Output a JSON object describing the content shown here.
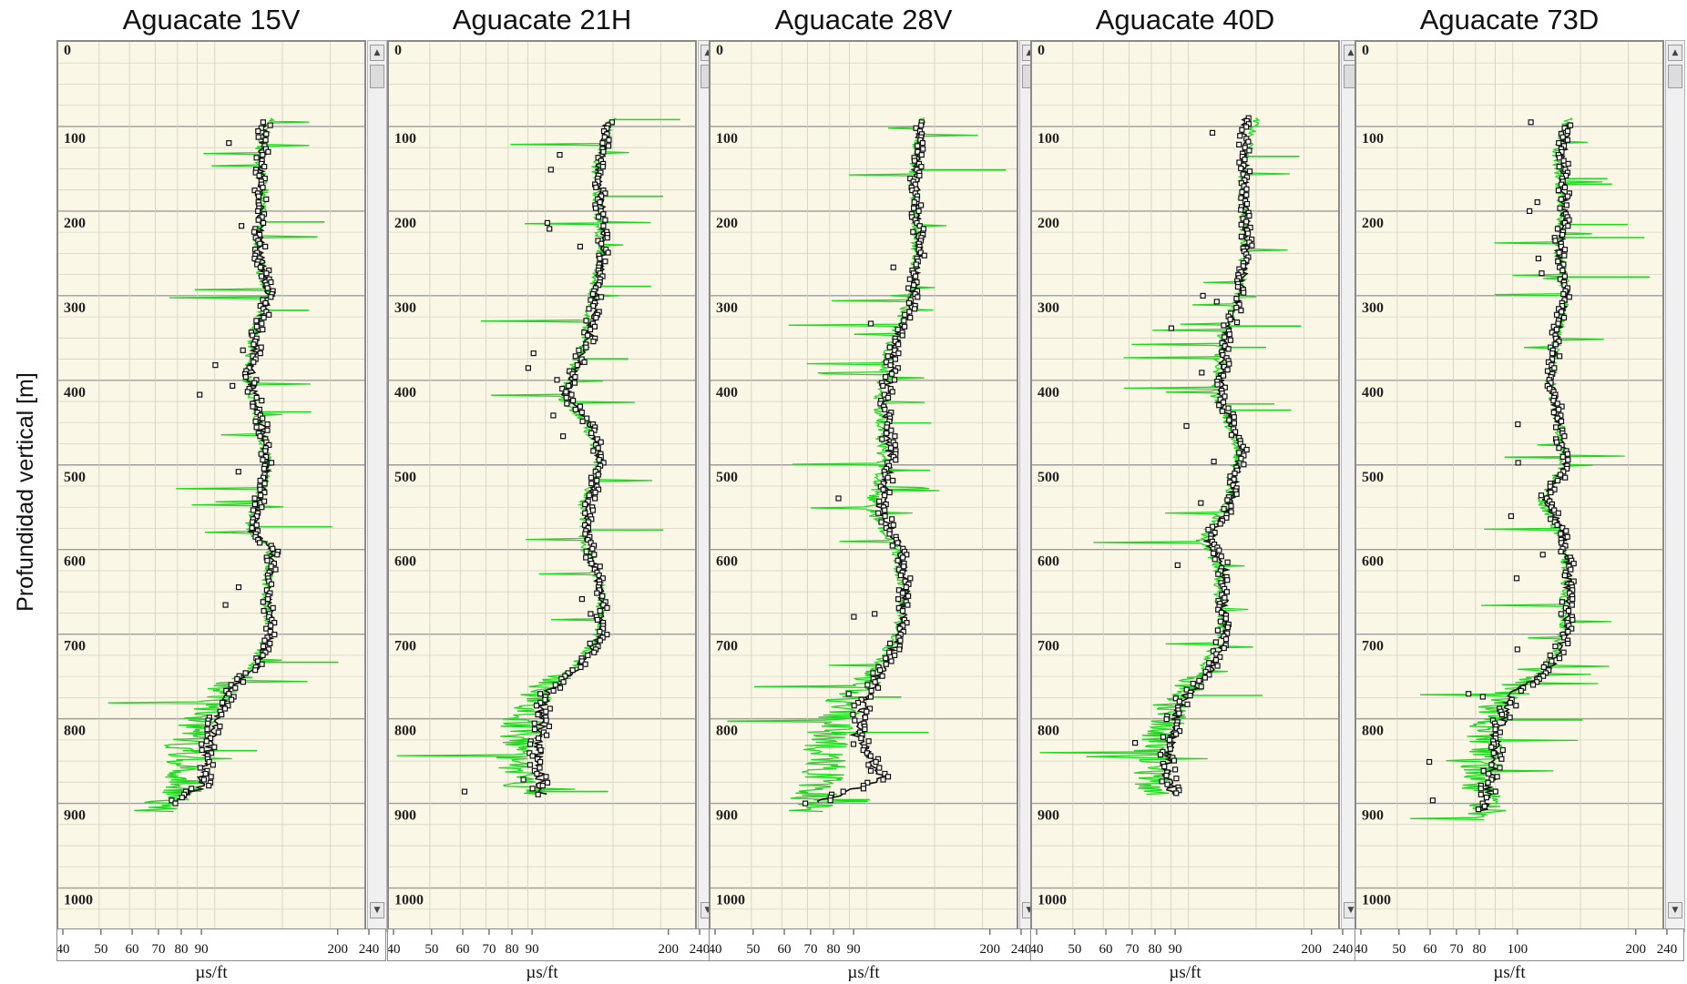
{
  "figure": {
    "ylabel": "Profundidad vertical  [m]"
  },
  "chart_data": [
    {
      "type": "line",
      "title": "Aguacate 15V",
      "xlabel": "µs/ft",
      "ylabel": "Profundidad vertical  [m]",
      "x_scale": "log",
      "x_ticks": [
        40,
        50,
        60,
        70,
        80,
        90,
        200,
        240
      ],
      "y_ticks": [
        0,
        100,
        200,
        300,
        400,
        500,
        600,
        700,
        800,
        900,
        1000
      ],
      "ylim": [
        0,
        1050
      ],
      "xlim": [
        40,
        240
      ],
      "grid": true,
      "series": [
        {
          "color": "#1fd81f",
          "profile": [
            [
              90,
              140
            ],
            [
              130,
              130
            ],
            [
              170,
              135
            ],
            [
              250,
              128
            ],
            [
              300,
              138
            ],
            [
              350,
              125
            ],
            [
              400,
              122
            ],
            [
              450,
              130
            ],
            [
              500,
              138
            ],
            [
              550,
              128
            ],
            [
              580,
              122
            ],
            [
              600,
              140
            ],
            [
              650,
              136
            ],
            [
              700,
              138
            ],
            [
              740,
              125
            ],
            [
              760,
              108
            ],
            [
              800,
              92
            ],
            [
              840,
              82
            ],
            [
              880,
              85
            ],
            [
              910,
              70
            ]
          ]
        },
        {
          "color": "#111111",
          "profile": [
            [
              95,
              135
            ],
            [
              130,
              133
            ],
            [
              170,
              132
            ],
            [
              250,
              131
            ],
            [
              300,
              138
            ],
            [
              350,
              128
            ],
            [
              400,
              124
            ],
            [
              450,
              132
            ],
            [
              500,
              138
            ],
            [
              550,
              130
            ],
            [
              580,
              125
            ],
            [
              600,
              142
            ],
            [
              650,
              138
            ],
            [
              700,
              140
            ],
            [
              740,
              128
            ],
            [
              760,
              112
            ],
            [
              800,
              100
            ],
            [
              840,
              96
            ],
            [
              880,
              92
            ],
            [
              900,
              80
            ]
          ]
        }
      ]
    },
    {
      "type": "line",
      "title": "Aguacate 21H",
      "xlabel": "µs/ft",
      "ylabel": "",
      "x_scale": "log",
      "x_ticks": [
        40,
        50,
        60,
        70,
        80,
        90,
        200,
        240
      ],
      "y_ticks": [
        0,
        100,
        200,
        300,
        400,
        500,
        600,
        700,
        800,
        900,
        1000
      ],
      "ylim": [
        0,
        1050
      ],
      "xlim": [
        40,
        240
      ],
      "grid": true,
      "series": [
        {
          "color": "#1fd81f",
          "profile": [
            [
              90,
              150
            ],
            [
              150,
              135
            ],
            [
              250,
              140
            ],
            [
              300,
              132
            ],
            [
              350,
              128
            ],
            [
              420,
              110
            ],
            [
              450,
              128
            ],
            [
              500,
              138
            ],
            [
              550,
              125
            ],
            [
              600,
              128
            ],
            [
              650,
              140
            ],
            [
              700,
              138
            ],
            [
              740,
              118
            ],
            [
              770,
              95
            ],
            [
              800,
              88
            ],
            [
              850,
              84
            ],
            [
              890,
              90
            ]
          ]
        },
        {
          "color": "#111111",
          "profile": [
            [
              95,
              145
            ],
            [
              150,
              138
            ],
            [
              250,
              142
            ],
            [
              300,
              135
            ],
            [
              350,
              130
            ],
            [
              420,
              112
            ],
            [
              450,
              130
            ],
            [
              500,
              140
            ],
            [
              550,
              128
            ],
            [
              600,
              130
            ],
            [
              650,
              140
            ],
            [
              700,
              140
            ],
            [
              740,
              122
            ],
            [
              770,
              100
            ],
            [
              800,
              98
            ],
            [
              850,
              95
            ],
            [
              890,
              98
            ]
          ]
        }
      ]
    },
    {
      "type": "line",
      "title": "Aguacate 28V",
      "xlabel": "µs/ft",
      "ylabel": "",
      "x_scale": "log",
      "x_ticks": [
        40,
        50,
        60,
        70,
        80,
        90,
        200,
        240
      ],
      "y_ticks": [
        0,
        100,
        200,
        300,
        400,
        500,
        600,
        700,
        800,
        900,
        1000
      ],
      "ylim": [
        0,
        1050
      ],
      "xlim": [
        40,
        240
      ],
      "grid": true,
      "series": [
        {
          "color": "#1fd81f",
          "profile": [
            [
              90,
              140
            ],
            [
              150,
              132
            ],
            [
              250,
              135
            ],
            [
              300,
              130
            ],
            [
              360,
              115
            ],
            [
              420,
              108
            ],
            [
              500,
              110
            ],
            [
              550,
              102
            ],
            [
              600,
              118
            ],
            [
              650,
              125
            ],
            [
              700,
              120
            ],
            [
              740,
              105
            ],
            [
              780,
              88
            ],
            [
              820,
              80
            ],
            [
              860,
              78
            ],
            [
              900,
              72
            ],
            [
              910,
              68
            ]
          ]
        },
        {
          "color": "#111111",
          "profile": [
            [
              95,
              138
            ],
            [
              150,
              134
            ],
            [
              250,
              137
            ],
            [
              300,
              132
            ],
            [
              360,
              118
            ],
            [
              420,
              112
            ],
            [
              500,
              115
            ],
            [
              550,
              108
            ],
            [
              600,
              122
            ],
            [
              650,
              126
            ],
            [
              700,
              122
            ],
            [
              740,
              110
            ],
            [
              780,
              98
            ],
            [
              820,
              94
            ],
            [
              870,
              110
            ],
            [
              900,
              72
            ]
          ]
        }
      ]
    },
    {
      "type": "line",
      "title": "Aguacate 40D",
      "xlabel": "µs/ft",
      "ylabel": "",
      "x_scale": "log",
      "x_ticks": [
        40,
        50,
        60,
        70,
        80,
        90,
        200,
        240
      ],
      "y_ticks": [
        0,
        100,
        200,
        300,
        400,
        500,
        600,
        700,
        800,
        900,
        1000
      ],
      "ylim": [
        0,
        1050
      ],
      "xlim": [
        40,
        240
      ],
      "grid": true,
      "series": [
        {
          "color": "#1fd81f",
          "profile": [
            [
              90,
              150
            ],
            [
              150,
              138
            ],
            [
              250,
              140
            ],
            [
              300,
              135
            ],
            [
              350,
              122
            ],
            [
              420,
              118
            ],
            [
              480,
              135
            ],
            [
              550,
              125
            ],
            [
              590,
              108
            ],
            [
              620,
              120
            ],
            [
              700,
              122
            ],
            [
              740,
              110
            ],
            [
              780,
              92
            ],
            [
              820,
              85
            ],
            [
              860,
              80
            ],
            [
              890,
              84
            ]
          ]
        },
        {
          "color": "#111111",
          "profile": [
            [
              90,
              140
            ],
            [
              150,
              140
            ],
            [
              250,
              142
            ],
            [
              300,
              136
            ],
            [
              350,
              125
            ],
            [
              420,
              120
            ],
            [
              480,
              138
            ],
            [
              550,
              128
            ],
            [
              590,
              112
            ],
            [
              620,
              124
            ],
            [
              700,
              124
            ],
            [
              740,
              115
            ],
            [
              780,
              95
            ],
            [
              820,
              90
            ],
            [
              860,
              88
            ],
            [
              890,
              90
            ]
          ]
        }
      ]
    },
    {
      "type": "line",
      "title": "Aguacate 73D",
      "xlabel": "µs/ft",
      "ylabel": "",
      "x_scale": "log",
      "x_ticks": [
        40,
        50,
        60,
        70,
        80,
        100,
        200,
        240
      ],
      "y_ticks": [
        0,
        100,
        200,
        300,
        400,
        500,
        600,
        700,
        800,
        900,
        1000
      ],
      "ylim": [
        0,
        1050
      ],
      "xlim": [
        40,
        240
      ],
      "grid": true,
      "series": [
        {
          "color": "#1fd81f",
          "profile": [
            [
              90,
              140
            ],
            [
              130,
              130
            ],
            [
              200,
              135
            ],
            [
              250,
              132
            ],
            [
              300,
              138
            ],
            [
              350,
              130
            ],
            [
              400,
              125
            ],
            [
              450,
              132
            ],
            [
              500,
              136
            ],
            [
              540,
              118
            ],
            [
              580,
              132
            ],
            [
              620,
              138
            ],
            [
              700,
              135
            ],
            [
              740,
              122
            ],
            [
              770,
              95
            ],
            [
              820,
              85
            ],
            [
              870,
              82
            ],
            [
              920,
              88
            ]
          ]
        },
        {
          "color": "#111111",
          "profile": [
            [
              95,
              140
            ],
            [
              130,
              135
            ],
            [
              200,
              136
            ],
            [
              250,
              132
            ],
            [
              300,
              138
            ],
            [
              350,
              130
            ],
            [
              400,
              125
            ],
            [
              450,
              132
            ],
            [
              500,
              138
            ],
            [
              540,
              122
            ],
            [
              580,
              134
            ],
            [
              620,
              140
            ],
            [
              700,
              138
            ],
            [
              740,
              125
            ],
            [
              770,
              100
            ],
            [
              820,
              90
            ],
            [
              870,
              88
            ],
            [
              910,
              84
            ]
          ]
        }
      ]
    }
  ]
}
